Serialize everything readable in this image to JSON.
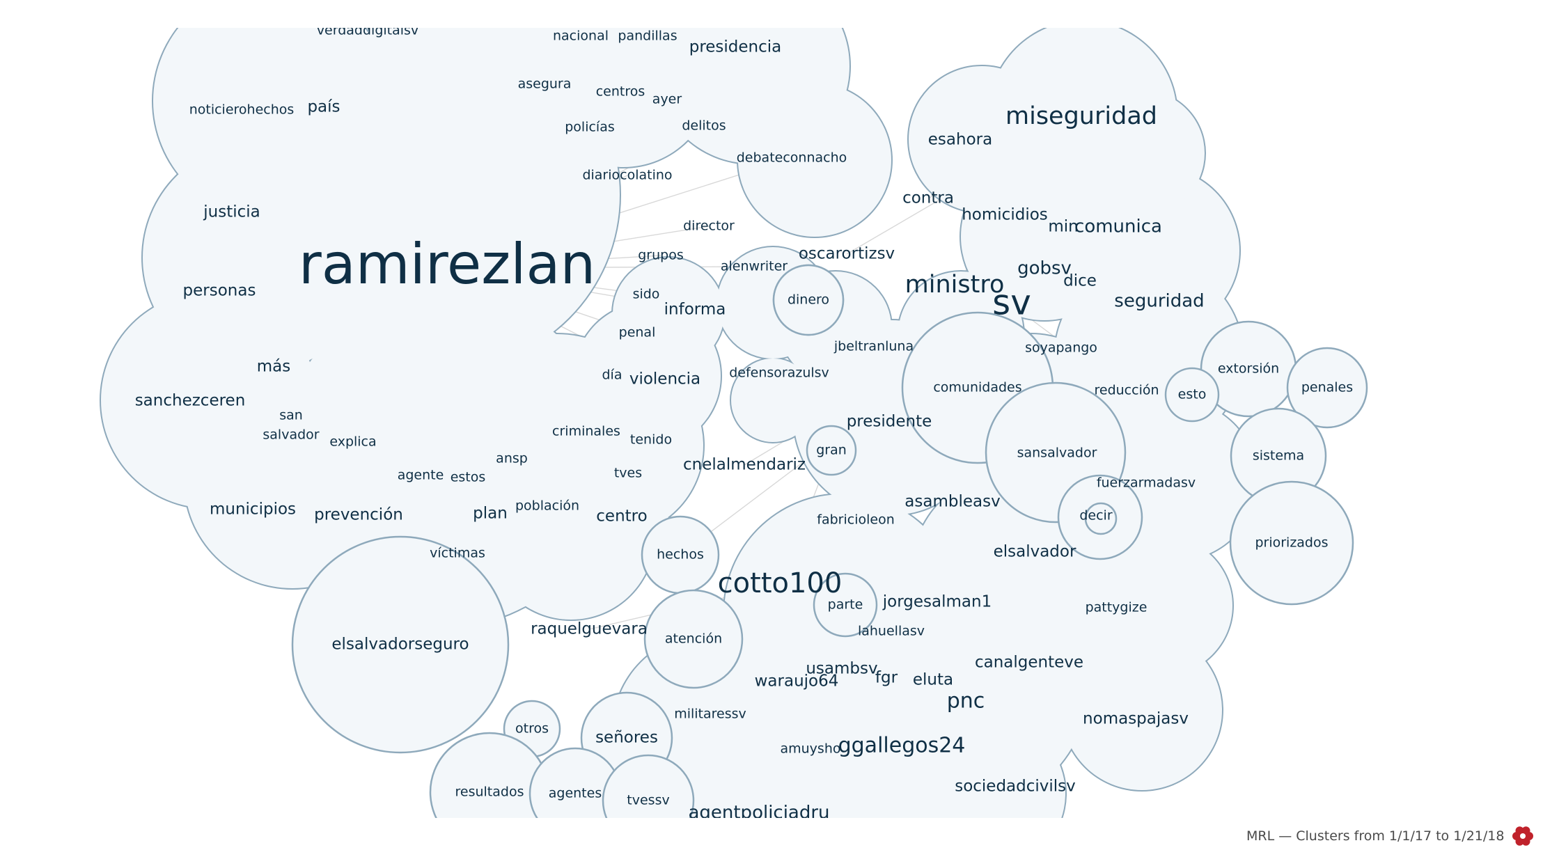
{
  "footer": {
    "caption": "MRL — Clusters from 1/1/17 to 1/21/18",
    "logo_icon": "flower-logo-icon",
    "logo_color": "#c0222b"
  },
  "colors": {
    "bubble_fill": "#f3f7fa",
    "bubble_stroke": "#8ea9bb",
    "edge": "#d8d8d8",
    "text": "#0f2f45"
  },
  "words": [
    "verdaddigitalsv",
    "nacional",
    "pandillas",
    "presidencia",
    "asegura",
    "centros",
    "ayer",
    "noticierohechos",
    "país",
    "policías",
    "delitos",
    "debateconnacho",
    "diariocolatino",
    "justicia",
    "director",
    "grupos",
    "alenwriter",
    "ramirezlan",
    "personas",
    "sido",
    "dinero",
    "informa",
    "penal",
    "más",
    "sanchezceren",
    "día",
    "violencia",
    "san",
    "salvador",
    "explica",
    "criminales",
    "tenido",
    "ansp",
    "agente",
    "estos",
    "tves",
    "municipios",
    "prevención",
    "plan",
    "población",
    "centro",
    "víctimas",
    "elsalvadorseguro",
    "miseguridad",
    "esahora",
    "contra",
    "homicidios",
    "min",
    "comunica",
    "oscarortizsv",
    "gobsv",
    "ministro",
    "dice",
    "sv",
    "seguridad",
    "jbeltranluna",
    "defensorazulsv",
    "soyapango",
    "comunidades",
    "reducción",
    "esto",
    "extorsión",
    "penales",
    "presidente",
    "gran",
    "cnelalmendariz",
    "sansalvador",
    "sistema",
    "fuerzarmadasv",
    "asambleasv",
    "fabricioleon",
    "decir",
    "priorizados",
    "hechos",
    "elsalvador",
    "cotto100",
    "parte",
    "jorgesalman1",
    "pattygize",
    "raquelguevara",
    "atención",
    "lahuellasv",
    "canalgenteve",
    "usambsv",
    "waraujo64",
    "fgr",
    "eluta",
    "pnc",
    "militaressv",
    "nomaspajasv",
    "otros",
    "señores",
    "amuysho",
    "ggallegos24",
    "sociedadcivilsv",
    "resultados",
    "agentes",
    "tvessv",
    "agentpoliciadru"
  ]
}
